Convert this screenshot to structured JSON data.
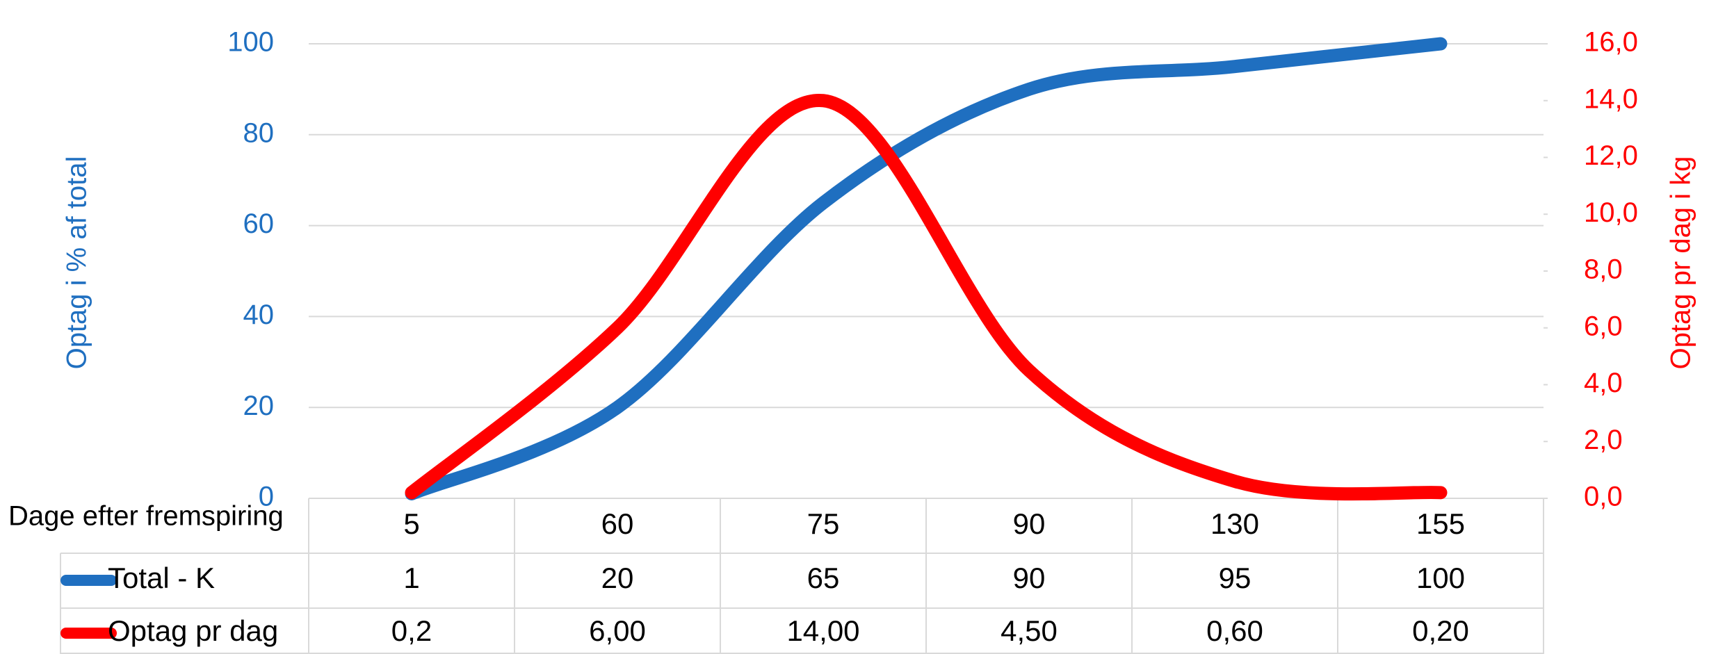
{
  "chart_data": {
    "type": "line",
    "xlabel": "Dage efter fremspiring",
    "categories": [
      "5",
      "60",
      "75",
      "90",
      "130",
      "155"
    ],
    "ylabel": "Optag i % af total",
    "y2label": "Optag pr dag i kg",
    "ylim": [
      0,
      100
    ],
    "yticks": [
      0,
      20,
      40,
      60,
      80,
      100
    ],
    "y2lim": [
      0,
      16
    ],
    "y2ticks": [
      {
        "value": 0,
        "label": "0,0"
      },
      {
        "value": 2,
        "label": "2,0"
      },
      {
        "value": 4,
        "label": "4,0"
      },
      {
        "value": 6,
        "label": "6,0"
      },
      {
        "value": 8,
        "label": "8,0"
      },
      {
        "value": 10,
        "label": "10,0"
      },
      {
        "value": 12,
        "label": "12,0"
      },
      {
        "value": 14,
        "label": "14,0"
      },
      {
        "value": 16,
        "label": "16,0"
      }
    ],
    "grid": true,
    "series": [
      {
        "name": "Total - K",
        "color": "#1f6fc0",
        "axis": "y",
        "values": [
          1,
          20,
          65,
          90,
          95,
          100
        ]
      },
      {
        "name": "Optag pr dag",
        "color": "#ff0000",
        "axis": "y2",
        "values": [
          0.2,
          6,
          14,
          4.5,
          0.6,
          0.2
        ],
        "value_labels": [
          "0,2",
          "6,00",
          "14,00",
          "4,50",
          "0,60",
          "0,20"
        ]
      }
    ]
  }
}
